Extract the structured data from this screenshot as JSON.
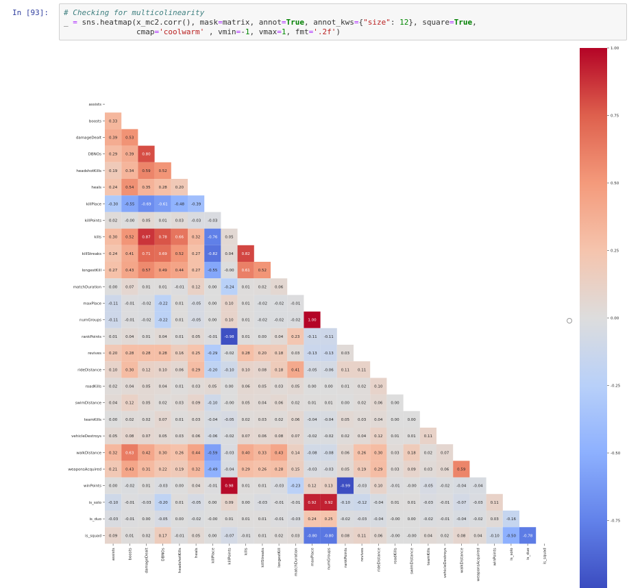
{
  "cell": {
    "prompt": "In [93]:",
    "code_line1_comment": "# Checking for multicolinearity",
    "code_line2": "_ = sns.heatmap(x_mc2.corr(), mask=matrix, annot=True, annot_kws={\"size\": 12}, square=True,",
    "code_line3": "                cmap='coolwarm' , vmin=-1, vmax=1, fmt='.2f')"
  },
  "chart_data": {
    "type": "heatmap",
    "cmap": "coolwarm",
    "vmin": -1,
    "vmax": 1,
    "mask": "upper triangle including diagonal",
    "labels": [
      "assists",
      "boosts",
      "damageDealt",
      "DBNOs",
      "headshotKills",
      "heals",
      "killPlace",
      "killPoints",
      "kills",
      "killStreaks",
      "longestKill",
      "matchDuration",
      "maxPlace",
      "numGroups",
      "rankPoints",
      "revives",
      "rideDistance",
      "roadKills",
      "swimDistance",
      "teamKills",
      "vehicleDestroys",
      "walkDistance",
      "weaponsAcquired",
      "winPoints",
      "is_solo",
      "is_duo",
      "is_squad"
    ],
    "values": [
      [],
      [
        "0.33"
      ],
      [
        "0.39",
        "0.53"
      ],
      [
        "0.29",
        "0.39",
        "0.80"
      ],
      [
        "0.19",
        "0.34",
        "0.59",
        "0.52"
      ],
      [
        "0.24",
        "0.54",
        "0.35",
        "0.28",
        "0.20"
      ],
      [
        "-0.30",
        "-0.55",
        "-0.69",
        "-0.61",
        "-0.48",
        "-0.39"
      ],
      [
        "0.02",
        "-0.00",
        "0.05",
        "0.01",
        "0.03",
        "-0.03",
        "-0.03"
      ],
      [
        "0.30",
        "0.52",
        "0.87",
        "0.78",
        "0.66",
        "0.32",
        "-0.76",
        "0.05"
      ],
      [
        "0.24",
        "0.41",
        "0.71",
        "0.69",
        "0.52",
        "0.27",
        "-0.82",
        "0.04",
        "0.82"
      ],
      [
        "0.27",
        "0.43",
        "0.57",
        "0.49",
        "0.44",
        "0.27",
        "-0.55",
        "-0.00",
        "0.61",
        "0.52"
      ],
      [
        "0.00",
        "0.07",
        "0.01",
        "0.01",
        "-0.01",
        "0.12",
        "0.00",
        "-0.24",
        "0.01",
        "0.02",
        "0.06"
      ],
      [
        "-0.11",
        "-0.01",
        "-0.02",
        "-0.22",
        "0.01",
        "-0.05",
        "0.00",
        "0.10",
        "0.01",
        "-0.02",
        "-0.02",
        "-0.01"
      ],
      [
        "-0.11",
        "-0.01",
        "-0.02",
        "-0.22",
        "0.01",
        "-0.05",
        "0.00",
        "0.10",
        "0.01",
        "-0.02",
        "-0.02",
        "-0.02",
        "1.00"
      ],
      [
        "0.01",
        "0.04",
        "0.01",
        "0.04",
        "0.01",
        "0.05",
        "-0.01",
        "-0.98",
        "0.01",
        "0.00",
        "0.04",
        "0.23",
        "-0.11",
        "-0.11"
      ],
      [
        "0.20",
        "0.28",
        "0.28",
        "0.28",
        "0.16",
        "0.25",
        "-0.29",
        "-0.02",
        "0.28",
        "0.20",
        "0.18",
        "0.03",
        "-0.13",
        "-0.13",
        "0.03"
      ],
      [
        "0.10",
        "0.30",
        "0.12",
        "0.10",
        "0.06",
        "0.29",
        "-0.20",
        "-0.10",
        "0.10",
        "0.08",
        "0.18",
        "0.41",
        "-0.05",
        "-0.06",
        "0.11",
        "0.11"
      ],
      [
        "0.02",
        "0.04",
        "0.05",
        "0.04",
        "0.01",
        "0.03",
        "0.05",
        "0.00",
        "0.06",
        "0.05",
        "0.03",
        "0.05",
        "0.00",
        "0.00",
        "0.01",
        "0.02",
        "0.10"
      ],
      [
        "0.04",
        "0.12",
        "0.05",
        "0.02",
        "0.03",
        "0.09",
        "-0.10",
        "-0.00",
        "0.05",
        "0.04",
        "0.06",
        "0.02",
        "0.01",
        "0.01",
        "0.00",
        "0.02",
        "0.06",
        "0.00"
      ],
      [
        "0.00",
        "0.02",
        "0.02",
        "0.07",
        "0.01",
        "0.03",
        "-0.04",
        "-0.05",
        "0.02",
        "0.03",
        "0.02",
        "0.06",
        "-0.04",
        "-0.04",
        "0.05",
        "0.03",
        "0.04",
        "0.00",
        "0.00"
      ],
      [
        "0.05",
        "0.08",
        "0.07",
        "0.05",
        "0.03",
        "0.06",
        "-0.06",
        "-0.02",
        "0.07",
        "0.06",
        "0.08",
        "0.07",
        "-0.02",
        "-0.02",
        "0.02",
        "0.04",
        "0.12",
        "0.01",
        "0.01",
        "0.11"
      ],
      [
        "0.32",
        "0.63",
        "0.42",
        "0.30",
        "0.26",
        "0.44",
        "-0.59",
        "-0.03",
        "0.40",
        "0.33",
        "0.43",
        "0.14",
        "-0.08",
        "-0.08",
        "0.06",
        "0.26",
        "0.30",
        "0.03",
        "0.18",
        "0.02",
        "0.07"
      ],
      [
        "0.21",
        "0.43",
        "0.31",
        "0.22",
        "0.19",
        "0.32",
        "-0.49",
        "-0.04",
        "0.29",
        "0.26",
        "0.28",
        "0.15",
        "-0.03",
        "-0.03",
        "0.05",
        "0.19",
        "0.29",
        "0.03",
        "0.09",
        "0.03",
        "0.06",
        "0.59"
      ],
      [
        "0.00",
        "-0.02",
        "0.01",
        "-0.03",
        "0.00",
        "0.04",
        "-0.01",
        "0.98",
        "0.01",
        "0.01",
        "-0.03",
        "-0.23",
        "0.12",
        "0.13",
        "-0.99",
        "-0.03",
        "0.10",
        "-0.01",
        "-0.00",
        "-0.05",
        "-0.02",
        "-0.04",
        "-0.04"
      ],
      [
        "-0.10",
        "-0.01",
        "-0.03",
        "-0.20",
        "0.01",
        "-0.05",
        "0.00",
        "0.09",
        "0.00",
        "-0.03",
        "-0.01",
        "-0.01",
        "0.92",
        "0.92",
        "-0.10",
        "-0.12",
        "-0.04",
        "0.01",
        "0.01",
        "-0.03",
        "-0.01",
        "-0.07",
        "-0.03",
        "0.11"
      ],
      [
        "-0.03",
        "-0.01",
        "0.00",
        "-0.05",
        "0.00",
        "-0.02",
        "-0.00",
        "0.01",
        "0.01",
        "0.01",
        "-0.01",
        "-0.03",
        "0.24",
        "0.25",
        "-0.02",
        "-0.03",
        "-0.04",
        "-0.00",
        "0.00",
        "-0.02",
        "-0.01",
        "-0.04",
        "-0.02",
        "0.03",
        "-0.16"
      ],
      [
        "0.09",
        "0.01",
        "0.02",
        "0.17",
        "-0.01",
        "0.05",
        "0.00",
        "-0.07",
        "-0.01",
        "0.01",
        "0.02",
        "0.03",
        "-0.80",
        "-0.80",
        "0.08",
        "0.11",
        "0.06",
        "-0.00",
        "-0.00",
        "0.04",
        "0.02",
        "0.08",
        "0.04",
        "-0.10",
        "-0.50",
        "-0.78"
      ]
    ],
    "colorbar_ticks": [
      "1.00",
      "0.75",
      "0.50",
      "0.25",
      "0.00",
      "-0.25",
      "-0.50",
      "-0.75"
    ]
  }
}
